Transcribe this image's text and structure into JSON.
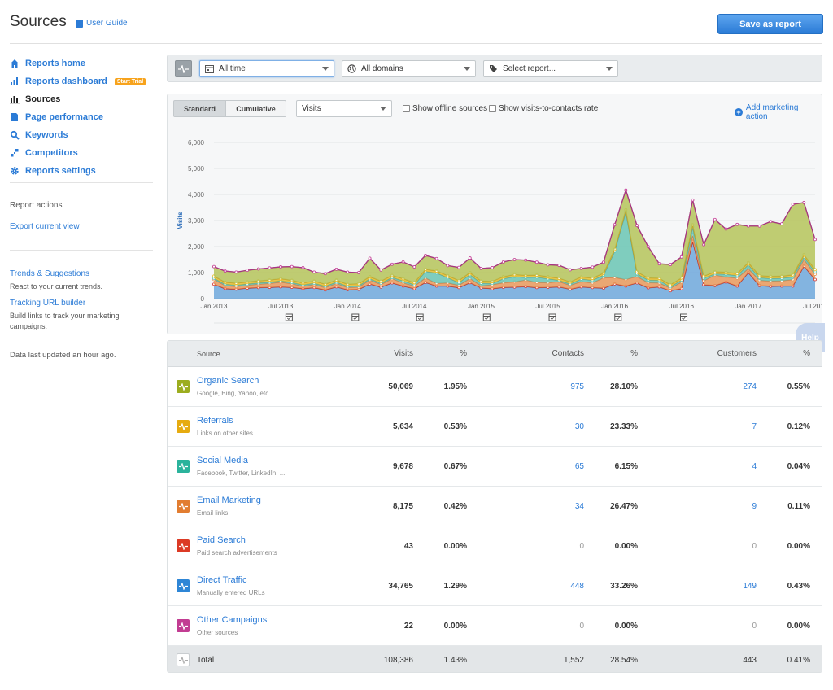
{
  "header": {
    "title": "Sources",
    "guide_label": "User Guide",
    "save_label": "Save as report"
  },
  "sidebar": {
    "items": [
      {
        "label": "Reports home",
        "icon": "home-icon"
      },
      {
        "label": "Reports dashboard",
        "icon": "bar-chart-icon",
        "badge": "Start Trial"
      },
      {
        "label": "Sources",
        "icon": "sources-chart-icon",
        "active": true
      },
      {
        "label": "Page performance",
        "icon": "document-icon"
      },
      {
        "label": "Keywords",
        "icon": "search-icon"
      },
      {
        "label": "Competitors",
        "icon": "competitors-icon"
      },
      {
        "label": "Reports settings",
        "icon": "gear-icon"
      }
    ],
    "report_actions_label": "Report actions",
    "export_label": "Export current view",
    "trends_label": "Trends & Suggestions",
    "trends_desc": "React to your current trends.",
    "tracking_label": "Tracking URL builder",
    "tracking_desc_1": "Build links to track your marketing",
    "tracking_desc_2": "campaigns.",
    "updated_label": "Data last updated an hour ago."
  },
  "filters": {
    "time": "All time",
    "domains": "All domains",
    "report": "Select report..."
  },
  "chart_controls": {
    "standard": "Standard",
    "cumulative": "Cumulative",
    "metric": "Visits",
    "offline": "Show offline sources",
    "visits_contacts": "Show visits-to-contacts rate",
    "add_action": "Add marketing action"
  },
  "help_label": "Help",
  "chart_data": {
    "type": "area",
    "stacked": true,
    "ylabel": "Visits",
    "ylim": [
      0,
      6000
    ],
    "yticks": [
      "0",
      "1,000",
      "2,000",
      "3,000",
      "4,000",
      "5,000",
      "6,000"
    ],
    "xticks": [
      "Jan 2013",
      "Jul 2013",
      "Jan 2014",
      "Jul 2014",
      "Jan 2015",
      "Jul 2015",
      "Jan 2016",
      "Jul 2016",
      "Jan 2017",
      "Jul 2017"
    ],
    "grid": true,
    "series": [
      {
        "name": "Direct Traffic",
        "color": "#6fa8dc",
        "values": [
          550,
          380,
          360,
          400,
          420,
          430,
          450,
          430,
          380,
          420,
          330,
          450,
          340,
          350,
          560,
          440,
          600,
          480,
          380,
          620,
          480,
          480,
          420,
          610,
          410,
          380,
          430,
          440,
          460,
          420,
          430,
          450,
          360,
          450,
          420,
          400,
          560,
          480,
          600,
          410,
          450,
          300,
          380,
          2200,
          530,
          500,
          630,
          480,
          1000,
          500,
          470,
          480,
          480,
          1250,
          730
        ]
      },
      {
        "name": "Paid Search",
        "color": "#e03c31",
        "values": [
          5,
          5,
          5,
          5,
          5,
          5,
          5,
          5,
          5,
          5,
          5,
          5,
          5,
          5,
          5,
          5,
          5,
          5,
          5,
          5,
          5,
          5,
          5,
          5,
          5,
          5,
          5,
          5,
          5,
          5,
          5,
          5,
          5,
          5,
          5,
          5,
          5,
          5,
          5,
          5,
          5,
          5,
          5,
          5,
          5,
          5,
          5,
          5,
          5,
          5,
          5,
          5,
          5,
          5,
          5
        ]
      },
      {
        "name": "Email Marketing",
        "color": "#e8995c",
        "values": [
          180,
          120,
          100,
          110,
          130,
          150,
          180,
          140,
          90,
          120,
          90,
          130,
          80,
          90,
          150,
          100,
          160,
          120,
          100,
          170,
          100,
          120,
          90,
          160,
          80,
          150,
          180,
          200,
          250,
          200,
          180,
          200,
          150,
          200,
          180,
          400,
          250,
          250,
          250,
          200,
          150,
          100,
          250,
          250,
          150,
          400,
          200,
          300,
          150,
          200,
          200,
          200,
          250,
          250,
          200
        ]
      },
      {
        "name": "Social Media",
        "color": "#6ac5b4",
        "values": [
          50,
          50,
          50,
          50,
          50,
          50,
          50,
          50,
          50,
          50,
          50,
          50,
          50,
          50,
          50,
          50,
          50,
          80,
          50,
          250,
          400,
          200,
          100,
          150,
          100,
          50,
          150,
          200,
          100,
          200,
          150,
          50,
          50,
          100,
          100,
          100,
          1000,
          2600,
          100,
          100,
          100,
          50,
          80,
          300,
          100,
          50,
          100,
          100,
          150,
          100,
          100,
          100,
          100,
          100,
          100
        ]
      },
      {
        "name": "Referrals",
        "color": "#e6be2e",
        "values": [
          80,
          80,
          80,
          80,
          80,
          80,
          80,
          80,
          80,
          80,
          80,
          80,
          80,
          80,
          80,
          80,
          80,
          80,
          80,
          80,
          80,
          80,
          80,
          80,
          80,
          80,
          80,
          80,
          80,
          80,
          80,
          80,
          80,
          80,
          80,
          80,
          80,
          80,
          80,
          80,
          80,
          80,
          80,
          80,
          80,
          80,
          80,
          80,
          80,
          80,
          80,
          80,
          80,
          80,
          80
        ]
      },
      {
        "name": "Organic Search",
        "color": "#b5c45a",
        "values": [
          360,
          420,
          420,
          440,
          450,
          460,
          450,
          520,
          580,
          340,
          400,
          410,
          460,
          420,
          700,
          420,
          420,
          640,
          600,
          530,
          470,
          380,
          500,
          550,
          480,
          520,
          560,
          570,
          580,
          490,
          450,
          490,
          460,
          320,
          420,
          410,
          940,
          750,
          1770,
          1200,
          550,
          770,
          800,
          950,
          1200,
          2000,
          1650,
          1880,
          1400,
          1900,
          2100,
          2000,
          2700,
          2000,
          1150
        ]
      },
      {
        "name": "Other Campaigns",
        "color": "#c63d9b",
        "values": [
          5,
          5,
          5,
          5,
          5,
          5,
          5,
          5,
          5,
          5,
          5,
          5,
          5,
          5,
          5,
          5,
          5,
          5,
          5,
          5,
          5,
          5,
          5,
          5,
          5,
          5,
          5,
          5,
          5,
          5,
          5,
          5,
          5,
          5,
          5,
          5,
          5,
          5,
          5,
          5,
          5,
          5,
          5,
          5,
          5,
          5,
          5,
          5,
          5,
          5,
          5,
          5,
          5,
          5,
          5
        ]
      }
    ]
  },
  "table": {
    "headers": {
      "source": "Source",
      "visits": "Visits",
      "visits_pct": "%",
      "contacts": "Contacts",
      "contacts_pct": "%",
      "customers": "Customers",
      "customers_pct": "%"
    },
    "rows": [
      {
        "name": "Organic Search",
        "desc": "Google, Bing, Yahoo, etc.",
        "color": "#9cad1f",
        "visits": "50,069",
        "visits_pct": "1.95%",
        "contacts": "975",
        "contacts_pct": "28.10%",
        "customers": "274",
        "customers_pct": "0.55%"
      },
      {
        "name": "Referrals",
        "desc": "Links on other sites",
        "color": "#e6ab10",
        "visits": "5,634",
        "visits_pct": "0.53%",
        "contacts": "30",
        "contacts_pct": "23.33%",
        "customers": "7",
        "customers_pct": "0.12%"
      },
      {
        "name": "Social Media",
        "desc": "Facebook, Twitter, LinkedIn, ...",
        "color": "#2bb39c",
        "visits": "9,678",
        "visits_pct": "0.67%",
        "contacts": "65",
        "contacts_pct": "6.15%",
        "customers": "4",
        "customers_pct": "0.04%"
      },
      {
        "name": "Email Marketing",
        "desc": "Email links",
        "color": "#e27d30",
        "visits": "8,175",
        "visits_pct": "0.42%",
        "contacts": "34",
        "contacts_pct": "26.47%",
        "customers": "9",
        "customers_pct": "0.11%"
      },
      {
        "name": "Paid Search",
        "desc": "Paid search advertisements",
        "color": "#dc3a25",
        "visits": "43",
        "visits_pct": "0.00%",
        "contacts": "0",
        "contacts_pct": "0.00%",
        "customers": "0",
        "customers_pct": "0.00%"
      },
      {
        "name": "Direct Traffic",
        "desc": "Manually entered URLs",
        "color": "#2e86d6",
        "visits": "34,765",
        "visits_pct": "1.29%",
        "contacts": "448",
        "contacts_pct": "33.26%",
        "customers": "149",
        "customers_pct": "0.43%"
      },
      {
        "name": "Other Campaigns",
        "desc": "Other sources",
        "color": "#c23c92",
        "visits": "22",
        "visits_pct": "0.00%",
        "contacts": "0",
        "contacts_pct": "0.00%",
        "customers": "0",
        "customers_pct": "0.00%"
      }
    ],
    "total": {
      "name": "Total",
      "visits": "108,386",
      "visits_pct": "1.43%",
      "contacts": "1,552",
      "contacts_pct": "28.54%",
      "customers": "443",
      "customers_pct": "0.41%"
    }
  }
}
